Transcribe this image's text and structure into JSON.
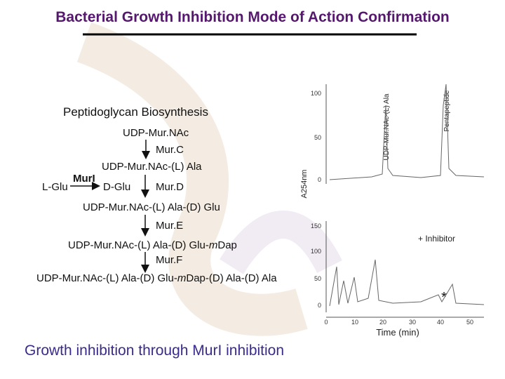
{
  "header": {
    "title": "Bacterial Growth Inhibition Mode of Action Confirmation"
  },
  "pathway": {
    "title": "Peptidoglycan Biosynthesis",
    "steps": [
      {
        "label": "UDP-Mur.NAc"
      },
      {
        "enzyme": "Mur.C"
      },
      {
        "label": "UDP-Mur.NAc-(L) Ala"
      },
      {
        "enzyme": "Mur.D"
      },
      {
        "label": "UDP-Mur.NAc-(L) Ala-(D) Glu"
      },
      {
        "enzyme": "Mur.E"
      },
      {
        "label_parts": [
          "UDP-Mur.NAc-(L) Ala-(D) Glu-",
          "m",
          "Dap"
        ]
      },
      {
        "enzyme": "Mur.F"
      },
      {
        "label_parts": [
          "UDP-Mur.NAc-(L) Ala-(D) Glu-",
          "m",
          "Dap-(D) Ala-(D) Ala"
        ]
      }
    ],
    "side_reaction": {
      "substrate": "L-Glu",
      "enzyme": "MurI",
      "product": "D-Glu"
    }
  },
  "chromatogram": {
    "y_label": "A254nm",
    "top_panel": {
      "yticks": [
        "100",
        "50",
        "0"
      ],
      "peaks": [
        "UDP-Mur.NAc-(L) Ala",
        "Pentapeptide"
      ]
    },
    "bottom_panel": {
      "yticks": [
        "150",
        "100",
        "50",
        "0"
      ],
      "annotation": "+ Inhibitor",
      "marker": "*"
    },
    "xticks": [
      "0",
      "10",
      "20",
      "30",
      "40",
      "50"
    ],
    "x_label": "Time (min)"
  },
  "footer": {
    "text": "Growth inhibition through MurI inhibition"
  }
}
